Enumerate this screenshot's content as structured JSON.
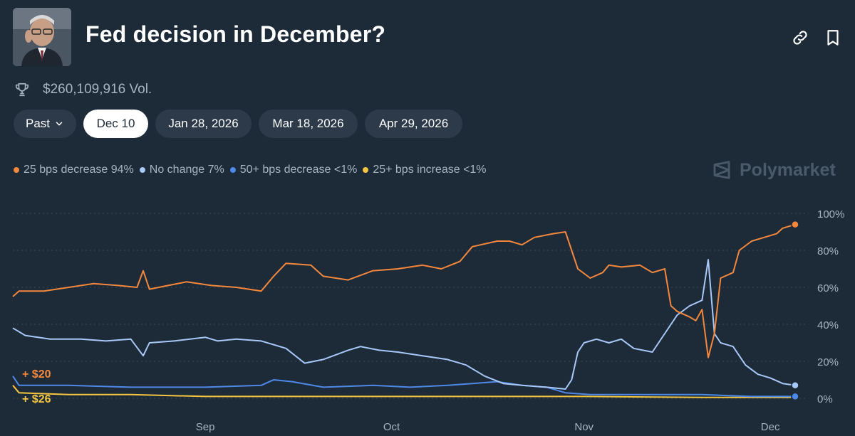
{
  "header": {
    "title": "Fed decision in December?",
    "volume": "$260,109,916 Vol.",
    "icons": [
      "link-icon",
      "bookmark-icon",
      "trophy-icon"
    ]
  },
  "tabs": [
    {
      "label": "Past",
      "dropdown": true,
      "active": false
    },
    {
      "label": "Dec 10",
      "active": true
    },
    {
      "label": "Jan 28, 2026",
      "active": false
    },
    {
      "label": "Mar 18, 2026",
      "active": false
    },
    {
      "label": "Apr 29, 2026",
      "active": false
    }
  ],
  "legend": [
    {
      "label": "25 bps decrease 94%",
      "color": "#f5873d"
    },
    {
      "label": "No change 7%",
      "color": "#a7c8f8"
    },
    {
      "label": "50+ bps decrease <1%",
      "color": "#4e89e8"
    },
    {
      "label": "25+ bps increase <1%",
      "color": "#f5c542"
    }
  ],
  "brand": "Polymarket",
  "chart_data": {
    "type": "line",
    "x_type": "date",
    "x_ticks": [
      "Sep",
      "Oct",
      "Nov",
      "Dec"
    ],
    "y_ticks": [
      "0%",
      "20%",
      "40%",
      "60%",
      "80%",
      "100%"
    ],
    "ylim": [
      0,
      100
    ],
    "grid": true,
    "annotations": [
      {
        "text": "+ $20",
        "color": "#f5873d"
      },
      {
        "text": "+ $26",
        "color": "#f5c542"
      }
    ],
    "series": [
      {
        "name": "25 bps decrease",
        "color": "#f5873d",
        "points": [
          [
            "Aug 1",
            55
          ],
          [
            "Aug 2",
            58
          ],
          [
            "Aug 6",
            58
          ],
          [
            "Aug 10",
            60
          ],
          [
            "Aug 14",
            62
          ],
          [
            "Aug 18",
            61
          ],
          [
            "Aug 21",
            60
          ],
          [
            "Aug 22",
            69
          ],
          [
            "Aug 23",
            59
          ],
          [
            "Aug 26",
            61
          ],
          [
            "Aug 29",
            63
          ],
          [
            "Sep 2",
            61
          ],
          [
            "Sep 6",
            60
          ],
          [
            "Sep 10",
            58
          ],
          [
            "Sep 12",
            66
          ],
          [
            "Sep 14",
            73
          ],
          [
            "Sep 18",
            72
          ],
          [
            "Sep 20",
            66
          ],
          [
            "Sep 24",
            64
          ],
          [
            "Sep 28",
            69
          ],
          [
            "Oct 2",
            70
          ],
          [
            "Oct 6",
            72
          ],
          [
            "Oct 9",
            70
          ],
          [
            "Oct 12",
            74
          ],
          [
            "Oct 14",
            82
          ],
          [
            "Oct 18",
            85
          ],
          [
            "Oct 20",
            85
          ],
          [
            "Oct 22",
            83
          ],
          [
            "Oct 24",
            87
          ],
          [
            "Oct 27",
            89
          ],
          [
            "Oct 29",
            90
          ],
          [
            "Oct 30",
            80
          ],
          [
            "Oct 31",
            70
          ],
          [
            "Nov 2",
            65
          ],
          [
            "Nov 4",
            68
          ],
          [
            "Nov 5",
            72
          ],
          [
            "Nov 7",
            71
          ],
          [
            "Nov 10",
            72
          ],
          [
            "Nov 12",
            68
          ],
          [
            "Nov 14",
            70
          ],
          [
            "Nov 15",
            50
          ],
          [
            "Nov 16",
            47
          ],
          [
            "Nov 18",
            44
          ],
          [
            "Nov 19",
            42
          ],
          [
            "Nov 20",
            48
          ],
          [
            "Nov 21",
            22
          ],
          [
            "Nov 22",
            35
          ],
          [
            "Nov 23",
            65
          ],
          [
            "Nov 25",
            68
          ],
          [
            "Nov 26",
            80
          ],
          [
            "Nov 28",
            85
          ],
          [
            "Nov 30",
            87
          ],
          [
            "Dec 2",
            89
          ],
          [
            "Dec 3",
            92
          ],
          [
            "Dec 5",
            94
          ]
        ]
      },
      {
        "name": "No change",
        "color": "#a7c8f8",
        "points": [
          [
            "Aug 1",
            38
          ],
          [
            "Aug 3",
            34
          ],
          [
            "Aug 7",
            32
          ],
          [
            "Aug 12",
            32
          ],
          [
            "Aug 16",
            31
          ],
          [
            "Aug 20",
            32
          ],
          [
            "Aug 22",
            23
          ],
          [
            "Aug 23",
            30
          ],
          [
            "Aug 27",
            31
          ],
          [
            "Sep 1",
            33
          ],
          [
            "Sep 3",
            31
          ],
          [
            "Sep 6",
            32
          ],
          [
            "Sep 10",
            31
          ],
          [
            "Sep 14",
            27
          ],
          [
            "Sep 17",
            19
          ],
          [
            "Sep 20",
            21
          ],
          [
            "Sep 24",
            26
          ],
          [
            "Sep 26",
            28
          ],
          [
            "Sep 29",
            26
          ],
          [
            "Oct 2",
            25
          ],
          [
            "Oct 6",
            23
          ],
          [
            "Oct 10",
            21
          ],
          [
            "Oct 13",
            18
          ],
          [
            "Oct 16",
            12
          ],
          [
            "Oct 19",
            8
          ],
          [
            "Oct 22",
            7
          ],
          [
            "Oct 26",
            6
          ],
          [
            "Oct 29",
            5
          ],
          [
            "Oct 30",
            10
          ],
          [
            "Oct 31",
            25
          ],
          [
            "Nov 1",
            30
          ],
          [
            "Nov 3",
            32
          ],
          [
            "Nov 5",
            30
          ],
          [
            "Nov 7",
            32
          ],
          [
            "Nov 9",
            27
          ],
          [
            "Nov 12",
            25
          ],
          [
            "Nov 14",
            35
          ],
          [
            "Nov 16",
            45
          ],
          [
            "Nov 18",
            50
          ],
          [
            "Nov 20",
            53
          ],
          [
            "Nov 21",
            75
          ],
          [
            "Nov 22",
            35
          ],
          [
            "Nov 23",
            30
          ],
          [
            "Nov 25",
            28
          ],
          [
            "Nov 27",
            18
          ],
          [
            "Nov 29",
            13
          ],
          [
            "Dec 1",
            11
          ],
          [
            "Dec 3",
            8
          ],
          [
            "Dec 5",
            7
          ]
        ]
      },
      {
        "name": "50+ bps decrease",
        "color": "#4e89e8",
        "points": [
          [
            "Aug 1",
            12
          ],
          [
            "Aug 2",
            7
          ],
          [
            "Aug 10",
            7
          ],
          [
            "Aug 20",
            6
          ],
          [
            "Sep 1",
            6
          ],
          [
            "Sep 10",
            7
          ],
          [
            "Sep 12",
            10
          ],
          [
            "Sep 15",
            9
          ],
          [
            "Sep 20",
            6
          ],
          [
            "Sep 28",
            7
          ],
          [
            "Oct 4",
            6
          ],
          [
            "Oct 10",
            7
          ],
          [
            "Oct 14",
            8
          ],
          [
            "Oct 18",
            9
          ],
          [
            "Oct 22",
            7
          ],
          [
            "Oct 26",
            6
          ],
          [
            "Oct 29",
            3
          ],
          [
            "Nov 2",
            2
          ],
          [
            "Nov 10",
            2
          ],
          [
            "Nov 20",
            2
          ],
          [
            "Nov 28",
            1
          ],
          [
            "Dec 5",
            1
          ]
        ]
      },
      {
        "name": "25+ bps increase",
        "color": "#f5c542",
        "points": [
          [
            "Aug 1",
            7
          ],
          [
            "Aug 2",
            3
          ],
          [
            "Aug 10",
            2
          ],
          [
            "Aug 20",
            2
          ],
          [
            "Sep 1",
            1
          ],
          [
            "Sep 20",
            1
          ],
          [
            "Oct 10",
            1
          ],
          [
            "Nov 1",
            1
          ],
          [
            "Nov 20",
            0.5
          ],
          [
            "Dec 5",
            0.5
          ]
        ]
      }
    ]
  }
}
